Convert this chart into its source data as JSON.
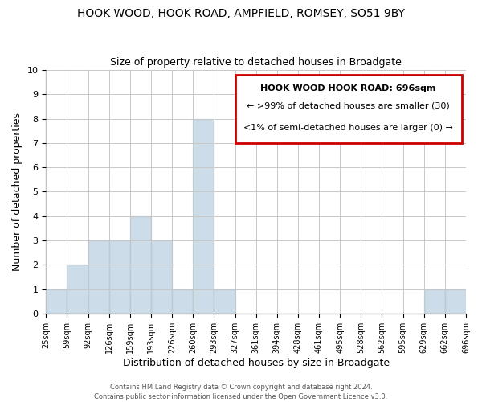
{
  "title": "HOOK WOOD, HOOK ROAD, AMPFIELD, ROMSEY, SO51 9BY",
  "subtitle": "Size of property relative to detached houses in Broadgate",
  "xlabel": "Distribution of detached houses by size in Broadgate",
  "ylabel": "Number of detached properties",
  "bar_labels": [
    "25sqm",
    "59sqm",
    "92sqm",
    "126sqm",
    "159sqm",
    "193sqm",
    "226sqm",
    "260sqm",
    "293sqm",
    "327sqm",
    "361sqm",
    "394sqm",
    "428sqm",
    "461sqm",
    "495sqm",
    "528sqm",
    "562sqm",
    "595sqm",
    "629sqm",
    "662sqm",
    "696sqm"
  ],
  "bar_heights": [
    1,
    2,
    3,
    3,
    4,
    3,
    1,
    8,
    1,
    0,
    0,
    0,
    0,
    0,
    0,
    0,
    0,
    0,
    1,
    1
  ],
  "bar_color": "#ccdce8",
  "bar_edge_color": "#7aaac8",
  "ylim": [
    0,
    10
  ],
  "yticks": [
    0,
    1,
    2,
    3,
    4,
    5,
    6,
    7,
    8,
    9,
    10
  ],
  "legend_title": "HOOK WOOD HOOK ROAD: 696sqm",
  "legend_line1": "← >99% of detached houses are smaller (30)",
  "legend_line2": "<1% of semi-detached houses are larger (0) →",
  "legend_box_color": "#cc0000",
  "footer_line1": "Contains HM Land Registry data © Crown copyright and database right 2024.",
  "footer_line2": "Contains public sector information licensed under the Open Government Licence v3.0.",
  "grid_color": "#c8c8c8",
  "background_color": "#ffffff",
  "title_fontsize": 10,
  "subtitle_fontsize": 9,
  "axis_label_fontsize": 9,
  "tick_fontsize": 7,
  "legend_fontsize": 8,
  "footer_fontsize": 6
}
